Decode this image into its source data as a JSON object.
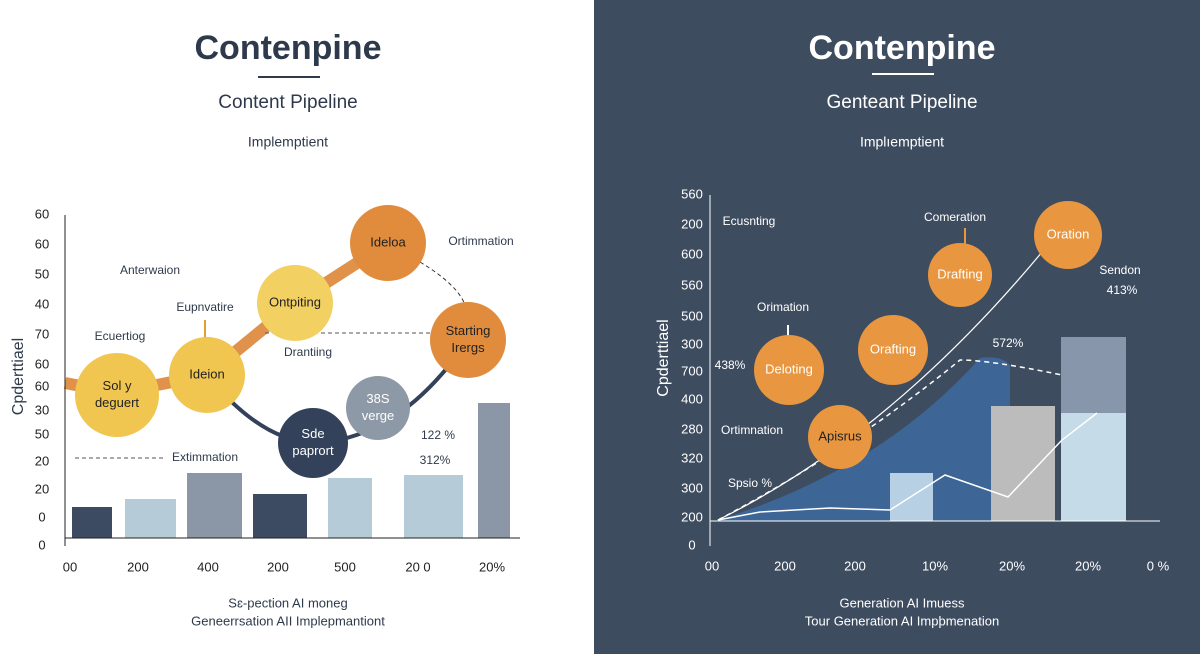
{
  "left": {
    "title": "Contenpine",
    "subtitle": "Content Pipeline",
    "caption": "Implemptient",
    "y_axis_label": "Cpderttiael",
    "y_tick_labels": [
      "60",
      "60",
      "50",
      "40",
      "70",
      "60",
      "60",
      "30",
      "50",
      "20",
      "20",
      "0",
      "0"
    ],
    "x_tick_labels": [
      "00",
      "200",
      "400",
      "200",
      "500",
      "20 0",
      "20%"
    ],
    "nodes": [
      {
        "lines": [
          "Sol y",
          "deguert"
        ]
      },
      {
        "lines": [
          "Ideion"
        ]
      },
      {
        "lines": [
          "Ontpiting"
        ]
      },
      {
        "lines": [
          "Idelоa"
        ]
      },
      {
        "lines": [
          "Starting",
          "Irergs"
        ]
      },
      {
        "lines": [
          "38S",
          "verge"
        ]
      },
      {
        "lines": [
          "Sde",
          "paprort"
        ]
      }
    ],
    "annotations": [
      "Anterwaion",
      "Eupnvatire",
      "Ecuertiog",
      "Drantiing",
      "Ortimmation",
      "Extimmation",
      "122 %",
      "312%"
    ],
    "footer": [
      "Sɛ-pection AI moneg",
      "Geneerrsation AII Implepmantiont"
    ]
  },
  "right": {
    "title": "Contenpine",
    "subtitle": "Genteant Pipeline",
    "caption": "Implıemptient",
    "y_axis_label": "Cpderttiael",
    "y_tick_labels": [
      "560",
      "200",
      "600",
      "560",
      "500",
      "300",
      "700",
      "400",
      "280",
      "320",
      "300",
      "200",
      "0"
    ],
    "x_tick_labels": [
      "00",
      "200",
      "200",
      "10%",
      "20%",
      "20%",
      "0 %"
    ],
    "nodes": [
      {
        "lines": [
          "Deloting"
        ]
      },
      {
        "lines": [
          "Orafting"
        ]
      },
      {
        "lines": [
          "Drafting"
        ]
      },
      {
        "lines": [
          "Oration"
        ]
      },
      {
        "lines": [
          "Apisrus"
        ]
      }
    ],
    "annotations": [
      "Ecusnting",
      "Comeration",
      "Sendon",
      "413%",
      "Orimation",
      "438%",
      "572%",
      "Ortimnation",
      "Spsio %"
    ],
    "footer": [
      "Generation AI Imuess",
      "Tour Generation AI Impþmenation"
    ]
  }
}
